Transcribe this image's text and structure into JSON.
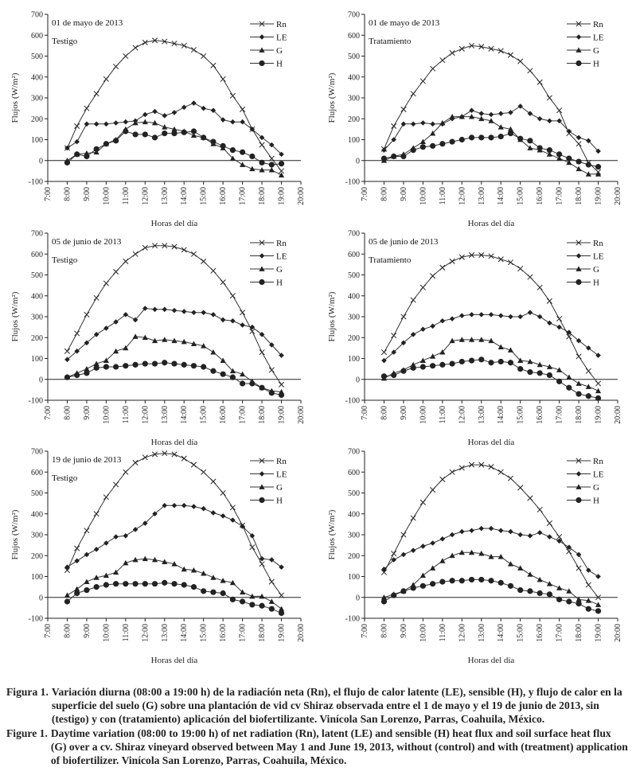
{
  "chart_data": [
    {
      "type": "line",
      "annotation": [
        "01 de mayo de 2013",
        "Testigo"
      ],
      "ylabel": "Flujos (W/m²)",
      "xlabel": "Horas del día",
      "ylim": [
        -100,
        700
      ],
      "yticks": [
        -100,
        0,
        100,
        200,
        300,
        400,
        500,
        600,
        700
      ],
      "xlim": [
        7,
        20
      ],
      "xticks": [
        "7:00",
        "8:00",
        "9:00",
        "10:00",
        "11:00",
        "12:00",
        "13:00",
        "14:00",
        "15:00",
        "16:00",
        "17:00",
        "18:00",
        "19:00",
        "20:00"
      ],
      "legend": [
        "Rn",
        "LE",
        "G",
        "H"
      ],
      "legend_position": "top-right",
      "x": [
        8.0,
        8.5,
        9.0,
        9.5,
        10.0,
        10.5,
        11.0,
        11.5,
        12.0,
        12.5,
        13.0,
        13.5,
        14.0,
        14.5,
        15.0,
        15.5,
        16.0,
        16.5,
        17.0,
        17.5,
        18.0,
        18.5,
        19.0
      ],
      "series": [
        {
          "name": "Rn",
          "values": [
            60,
            165,
            250,
            320,
            390,
            450,
            500,
            540,
            565,
            575,
            570,
            560,
            550,
            530,
            500,
            455,
            390,
            310,
            245,
            150,
            75,
            10,
            -50
          ]
        },
        {
          "name": "LE",
          "values": [
            60,
            90,
            175,
            175,
            175,
            180,
            185,
            190,
            220,
            235,
            215,
            230,
            255,
            275,
            250,
            240,
            195,
            185,
            185,
            150,
            110,
            75,
            30
          ]
        },
        {
          "name": "G",
          "values": [
            0,
            30,
            35,
            40,
            80,
            100,
            150,
            180,
            185,
            180,
            160,
            150,
            140,
            120,
            110,
            80,
            60,
            10,
            -20,
            -40,
            -45,
            -45,
            -70
          ]
        },
        {
          "name": "H",
          "values": [
            -10,
            30,
            20,
            55,
            80,
            95,
            140,
            125,
            125,
            110,
            130,
            130,
            135,
            140,
            110,
            90,
            70,
            50,
            40,
            20,
            -10,
            -20,
            -15
          ]
        }
      ]
    },
    {
      "type": "line",
      "annotation": [
        "01 de mayo de 2013",
        "Tratamiento"
      ],
      "ylabel": "Flujos (W/m²)",
      "xlabel": "Horas del día",
      "ylim": [
        -100,
        700
      ],
      "yticks": [
        -100,
        0,
        100,
        200,
        300,
        400,
        500,
        600,
        700
      ],
      "xlim": [
        7,
        20
      ],
      "xticks": [
        "7:00",
        "8:00",
        "9:00",
        "10:00",
        "11:00",
        "12:00",
        "13:00",
        "14:00",
        "15:00",
        "16:00",
        "17:00",
        "18:00",
        "19:00",
        "20:00"
      ],
      "legend": [
        "Rn",
        "LE",
        "G",
        "H"
      ],
      "legend_position": "top-right",
      "x": [
        8.0,
        8.5,
        9.0,
        9.5,
        10.0,
        10.5,
        11.0,
        11.5,
        12.0,
        12.5,
        13.0,
        13.5,
        14.0,
        14.5,
        15.0,
        15.5,
        16.0,
        16.5,
        17.0,
        17.5,
        18.0,
        18.5,
        19.0
      ],
      "series": [
        {
          "name": "Rn",
          "values": [
            55,
            165,
            245,
            320,
            380,
            440,
            480,
            515,
            535,
            550,
            545,
            535,
            525,
            505,
            475,
            430,
            375,
            300,
            240,
            130,
            80,
            -10,
            -55
          ]
        },
        {
          "name": "LE",
          "values": [
            50,
            100,
            175,
            175,
            180,
            175,
            175,
            200,
            210,
            240,
            225,
            220,
            225,
            230,
            260,
            225,
            200,
            190,
            190,
            140,
            110,
            95,
            45
          ]
        },
        {
          "name": "G",
          "values": [
            0,
            20,
            30,
            60,
            90,
            130,
            180,
            210,
            210,
            210,
            200,
            190,
            160,
            150,
            100,
            60,
            50,
            30,
            10,
            -10,
            -40,
            -65,
            -65
          ]
        },
        {
          "name": "H",
          "values": [
            10,
            20,
            20,
            50,
            65,
            70,
            80,
            90,
            100,
            110,
            110,
            110,
            115,
            130,
            105,
            95,
            60,
            50,
            30,
            10,
            -5,
            -20,
            -30
          ]
        }
      ]
    },
    {
      "type": "line",
      "annotation": [
        "05 de junio de 2013",
        "Testigo"
      ],
      "ylabel": "Flujos (W/m²)",
      "xlabel": "Horas del día",
      "ylim": [
        -100,
        700
      ],
      "yticks": [
        -100,
        0,
        100,
        200,
        300,
        400,
        500,
        600,
        700
      ],
      "xlim": [
        7,
        20
      ],
      "xticks": [
        "7:00",
        "8:00",
        "9:00",
        "10:00",
        "11:00",
        "12:00",
        "13:00",
        "14:00",
        "15:00",
        "16:00",
        "17:00",
        "18:00",
        "19:00",
        "20:00"
      ],
      "legend": [
        "Rn",
        "LE",
        "G",
        "H"
      ],
      "legend_position": "top-right",
      "x": [
        8.0,
        8.5,
        9.0,
        9.5,
        10.0,
        10.5,
        11.0,
        11.5,
        12.0,
        12.5,
        13.0,
        13.5,
        14.0,
        14.5,
        15.0,
        15.5,
        16.0,
        16.5,
        17.0,
        17.5,
        18.0,
        18.5,
        19.0
      ],
      "series": [
        {
          "name": "Rn",
          "values": [
            135,
            220,
            310,
            390,
            460,
            515,
            565,
            600,
            630,
            640,
            640,
            635,
            620,
            600,
            565,
            520,
            465,
            400,
            320,
            230,
            130,
            45,
            -25
          ]
        },
        {
          "name": "LE",
          "values": [
            95,
            135,
            175,
            215,
            245,
            275,
            310,
            285,
            340,
            335,
            335,
            330,
            325,
            320,
            320,
            310,
            285,
            280,
            260,
            250,
            215,
            165,
            115
          ]
        },
        {
          "name": "G",
          "values": [
            10,
            30,
            50,
            75,
            90,
            135,
            150,
            205,
            200,
            185,
            190,
            185,
            180,
            170,
            160,
            130,
            90,
            40,
            25,
            -10,
            -40,
            -55,
            -60
          ]
        },
        {
          "name": "H",
          "values": [
            10,
            20,
            30,
            55,
            60,
            60,
            65,
            70,
            75,
            75,
            80,
            75,
            70,
            65,
            60,
            40,
            25,
            10,
            -20,
            -20,
            -40,
            -65,
            -75
          ]
        }
      ]
    },
    {
      "type": "line",
      "annotation": [
        "05 de junio de 2013",
        "Tratamiento"
      ],
      "ylabel": "Flujos (W/m²)",
      "xlabel": "Horas del día",
      "ylim": [
        -100,
        700
      ],
      "yticks": [
        -100,
        0,
        100,
        200,
        300,
        400,
        500,
        600,
        700
      ],
      "xlim": [
        7,
        20
      ],
      "xticks": [
        "7:00",
        "8:00",
        "9:00",
        "10:00",
        "11:00",
        "12:00",
        "13:00",
        "14:00",
        "15:00",
        "16:00",
        "17:00",
        "18:00",
        "19:00",
        "20:00"
      ],
      "legend": [
        "Rn",
        "LE",
        "G",
        "H"
      ],
      "legend_position": "top-right",
      "x": [
        8.0,
        8.5,
        9.0,
        9.5,
        10.0,
        10.5,
        11.0,
        11.5,
        12.0,
        12.5,
        13.0,
        13.5,
        14.0,
        14.5,
        15.0,
        15.5,
        16.0,
        16.5,
        17.0,
        17.5,
        18.0,
        18.5,
        19.0
      ],
      "series": [
        {
          "name": "Rn",
          "values": [
            130,
            210,
            300,
            380,
            440,
            495,
            535,
            565,
            585,
            595,
            595,
            590,
            575,
            560,
            530,
            490,
            440,
            375,
            290,
            205,
            110,
            40,
            -20
          ]
        },
        {
          "name": "LE",
          "values": [
            90,
            130,
            175,
            215,
            240,
            255,
            280,
            290,
            305,
            310,
            310,
            310,
            305,
            300,
            300,
            320,
            300,
            270,
            250,
            225,
            185,
            150,
            115
          ]
        },
        {
          "name": "G",
          "values": [
            5,
            30,
            45,
            70,
            90,
            110,
            130,
            185,
            190,
            190,
            190,
            185,
            155,
            140,
            90,
            85,
            70,
            60,
            45,
            10,
            -20,
            -35,
            -55
          ]
        },
        {
          "name": "H",
          "values": [
            15,
            20,
            40,
            55,
            60,
            65,
            70,
            75,
            85,
            90,
            95,
            80,
            85,
            80,
            50,
            35,
            30,
            20,
            -10,
            -40,
            -70,
            -80,
            -90
          ]
        }
      ]
    },
    {
      "type": "line",
      "annotation": [
        "19 de junio de 2013",
        "Testigo"
      ],
      "ylabel": "Flujos (W/m²)",
      "xlabel": "Horas del día",
      "ylim": [
        -100,
        700
      ],
      "yticks": [
        -100,
        0,
        100,
        200,
        300,
        400,
        500,
        600,
        700
      ],
      "xlim": [
        7,
        20
      ],
      "xticks": [
        "7:00",
        "8:00",
        "9:00",
        "10:00",
        "11:00",
        "12:00",
        "13:00",
        "14:00",
        "15:00",
        "16:00",
        "17:00",
        "18:00",
        "19:00",
        "20:00"
      ],
      "legend": [
        "Rn",
        "LE",
        "G",
        "H"
      ],
      "legend_position": "top-right",
      "x": [
        8.0,
        8.5,
        9.0,
        9.5,
        10.0,
        10.5,
        11.0,
        11.5,
        12.0,
        12.5,
        13.0,
        13.5,
        14.0,
        14.5,
        15.0,
        15.5,
        16.0,
        16.5,
        17.0,
        17.5,
        18.0,
        18.5,
        19.0
      ],
      "series": [
        {
          "name": "Rn",
          "values": [
            130,
            235,
            320,
            400,
            480,
            540,
            600,
            645,
            670,
            685,
            690,
            685,
            665,
            635,
            600,
            555,
            500,
            430,
            345,
            240,
            160,
            75,
            10
          ]
        },
        {
          "name": "LE",
          "values": [
            145,
            175,
            205,
            230,
            260,
            290,
            295,
            325,
            355,
            400,
            440,
            440,
            440,
            435,
            425,
            405,
            390,
            370,
            340,
            295,
            185,
            180,
            145
          ]
        },
        {
          "name": "G",
          "values": [
            10,
            40,
            75,
            95,
            105,
            120,
            165,
            180,
            185,
            180,
            170,
            160,
            135,
            130,
            115,
            95,
            80,
            70,
            25,
            5,
            5,
            -20,
            -55
          ]
        },
        {
          "name": "H",
          "values": [
            -20,
            20,
            35,
            50,
            60,
            65,
            65,
            65,
            65,
            65,
            70,
            65,
            60,
            50,
            30,
            25,
            20,
            -10,
            -20,
            -35,
            -40,
            -55,
            -75
          ]
        }
      ]
    },
    {
      "type": "line",
      "annotation": [],
      "ylabel": "Flujos (W/m²)",
      "xlabel": "Horas del día",
      "ylim": [
        -100,
        700
      ],
      "yticks": [
        -100,
        0,
        100,
        200,
        300,
        400,
        500,
        600,
        700
      ],
      "xlim": [
        7,
        20
      ],
      "xticks": [
        "7:00",
        "8:00",
        "9:00",
        "10:00",
        "11:00",
        "12:00",
        "13:00",
        "14:00",
        "15:00",
        "16:00",
        "17:00",
        "18:00",
        "19:00",
        "20:00"
      ],
      "legend": [
        "Rn",
        "LE",
        "G",
        "H"
      ],
      "legend_position": "top-right",
      "x": [
        8.0,
        8.5,
        9.0,
        9.5,
        10.0,
        10.5,
        11.0,
        11.5,
        12.0,
        12.5,
        13.0,
        13.5,
        14.0,
        14.5,
        15.0,
        15.5,
        16.0,
        16.5,
        17.0,
        17.5,
        18.0,
        18.5,
        19.0
      ],
      "series": [
        {
          "name": "Rn",
          "values": [
            120,
            210,
            300,
            380,
            455,
            515,
            565,
            600,
            620,
            635,
            635,
            625,
            600,
            570,
            525,
            475,
            420,
            355,
            290,
            220,
            140,
            60,
            0
          ]
        },
        {
          "name": "LE",
          "values": [
            135,
            180,
            205,
            225,
            245,
            260,
            280,
            300,
            315,
            320,
            330,
            330,
            320,
            315,
            300,
            295,
            310,
            290,
            270,
            240,
            205,
            130,
            100
          ]
        },
        {
          "name": "G",
          "values": [
            0,
            15,
            30,
            60,
            105,
            140,
            175,
            200,
            215,
            215,
            210,
            195,
            195,
            160,
            140,
            110,
            85,
            65,
            45,
            30,
            -10,
            -15,
            -35
          ]
        },
        {
          "name": "H",
          "values": [
            -20,
            10,
            30,
            45,
            55,
            65,
            75,
            80,
            80,
            85,
            85,
            80,
            70,
            55,
            35,
            30,
            20,
            15,
            -10,
            -20,
            -30,
            -55,
            -65
          ]
        }
      ]
    }
  ],
  "caption": [
    {
      "label": "Figura 1.",
      "text": "Variación diurna (08:00 a 19:00 h) de la radiación neta (Rn), el flujo de calor latente (LE), sensible (H), y flujo de calor en la superficie del suelo (G) sobre una plantación de vid cv Shiraz observada entre el 1 de mayo y el 19 de junio de 2013, sin (testigo) y con (tratamiento) aplicación del biofertilizante. Vinícola San Lorenzo, Parras, Coahuila, México."
    },
    {
      "label": "Figure 1.",
      "text": "Daytime variation (08:00 to 19:00 h) of net radiation (Rn), latent (LE) and sensible (H) heat flux and soil surface heat flux (G) over a cv. Shiraz vineyard observed between May 1 and June 19, 2013, without (control) and with (treatment) application of biofertilizer. Vinícola San Lorenzo, Parras, Coahuila, México."
    }
  ]
}
